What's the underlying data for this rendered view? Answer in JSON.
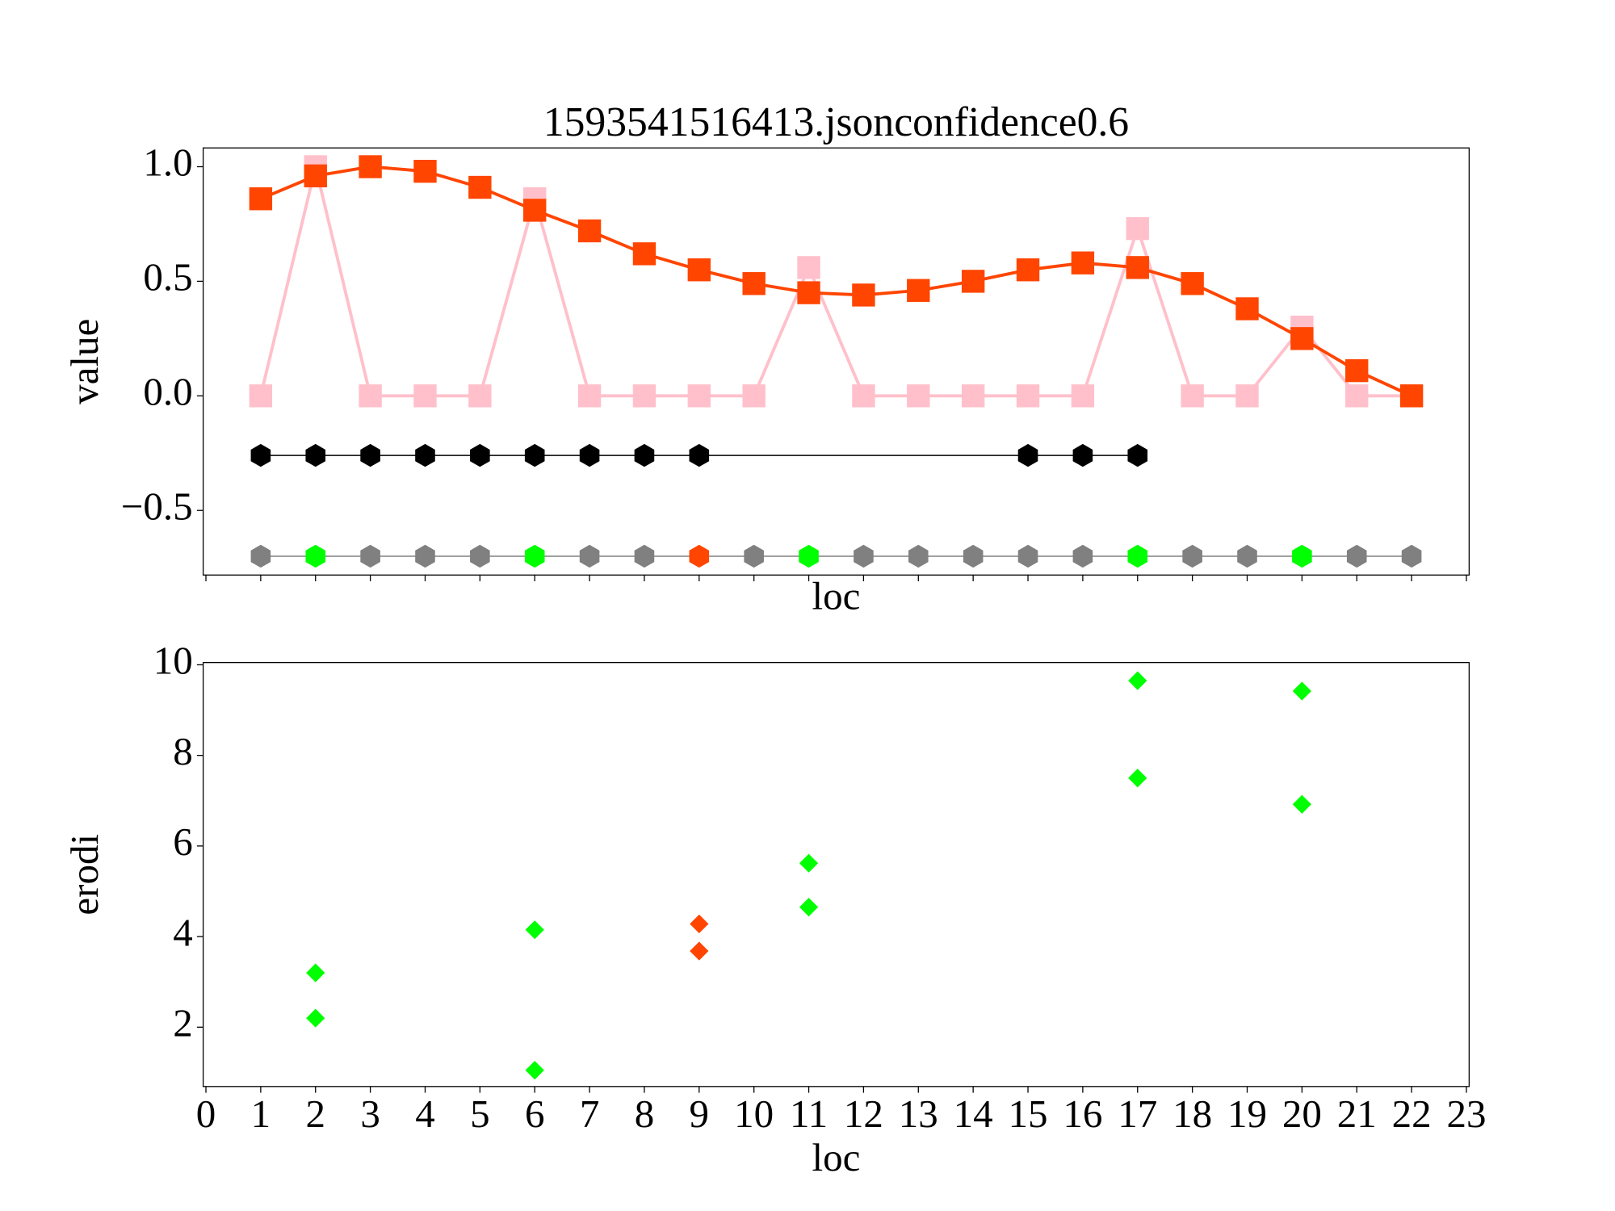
{
  "chart_data": [
    {
      "type": "line",
      "title": "1593541516413.jsonconfidence0.6",
      "xlabel": "loc",
      "ylabel": "value",
      "xlim": [
        -0.05,
        23.05
      ],
      "ylim": [
        -0.782,
        1.082
      ],
      "yticks": [
        {
          "value": -0.5,
          "label": "−0.5"
        },
        {
          "value": 0,
          "label": "0.0"
        },
        {
          "value": 0.5,
          "label": "0.5"
        },
        {
          "value": 1,
          "label": "1.0"
        }
      ],
      "series": [
        {
          "color": "#ffc0cb",
          "marker": "square",
          "x": [
            1,
            2,
            3,
            4,
            5,
            6,
            7,
            8,
            9,
            10,
            11,
            12,
            13,
            14,
            15,
            16,
            17,
            18,
            19,
            20,
            21,
            22
          ],
          "values": [
            0,
            1.0,
            0,
            0,
            0,
            0.86,
            0,
            0,
            0,
            0,
            0.56,
            0,
            0,
            0,
            0,
            0,
            0.73,
            0,
            0,
            0.3,
            0,
            0
          ]
        },
        {
          "color": "#ff4500",
          "marker": "square",
          "x": [
            1,
            2,
            3,
            4,
            5,
            6,
            7,
            8,
            9,
            10,
            11,
            12,
            13,
            14,
            15,
            16,
            17,
            18,
            19,
            20,
            21,
            22
          ],
          "values": [
            0.86,
            0.96,
            1.0,
            0.98,
            0.91,
            0.81,
            0.72,
            0.62,
            0.55,
            0.49,
            0.45,
            0.44,
            0.46,
            0.5,
            0.55,
            0.58,
            0.56,
            0.49,
            0.38,
            0.25,
            0.11,
            0.0
          ]
        },
        {
          "color": "#000000",
          "marker": "hexagon",
          "x": [
            1,
            2,
            3,
            4,
            5,
            6,
            7,
            8,
            9,
            15,
            16,
            17
          ],
          "values": [
            -0.26,
            -0.26,
            -0.26,
            -0.26,
            -0.26,
            -0.26,
            -0.26,
            -0.26,
            -0.26,
            -0.26,
            -0.26,
            -0.26
          ]
        },
        {
          "color": "#808080",
          "marker": "hexagon",
          "x": [
            1,
            2,
            3,
            4,
            5,
            6,
            7,
            8,
            9,
            10,
            11,
            12,
            13,
            14,
            15,
            16,
            17,
            18,
            19,
            20,
            21,
            22
          ],
          "values": [
            -0.7,
            -0.7,
            -0.7,
            -0.7,
            -0.7,
            -0.7,
            -0.7,
            -0.7,
            -0.7,
            -0.7,
            -0.7,
            -0.7,
            -0.7,
            -0.7,
            -0.7,
            -0.7,
            -0.7,
            -0.7,
            -0.7,
            -0.7,
            -0.7,
            -0.7
          ],
          "colors": [
            "#808080",
            "#00ff00",
            "#808080",
            "#808080",
            "#808080",
            "#00ff00",
            "#808080",
            "#808080",
            "#ff4500",
            "#808080",
            "#00ff00",
            "#808080",
            "#808080",
            "#808080",
            "#808080",
            "#808080",
            "#00ff00",
            "#808080",
            "#808080",
            "#00ff00",
            "#808080",
            "#808080"
          ]
        }
      ]
    },
    {
      "type": "scatter",
      "xlabel": "loc",
      "ylabel": "erodi",
      "xlim": [
        -0.05,
        23.05
      ],
      "ylim": [
        0.69,
        10.05
      ],
      "xticks": [
        0,
        1,
        2,
        3,
        4,
        5,
        6,
        7,
        8,
        9,
        10,
        11,
        12,
        13,
        14,
        15,
        16,
        17,
        18,
        19,
        20,
        21,
        22,
        23
      ],
      "yticks": [
        2,
        4,
        6,
        8,
        10
      ],
      "series": [
        {
          "marker": "diamond",
          "x": [
            2,
            2,
            6,
            6,
            9,
            9,
            11,
            11,
            17,
            17,
            20,
            20
          ],
          "values": [
            3.2,
            2.2,
            4.15,
            1.05,
            4.28,
            3.68,
            5.62,
            4.65,
            9.65,
            7.5,
            9.42,
            6.92
          ],
          "colors": [
            "#00ff00",
            "#00ff00",
            "#00ff00",
            "#00ff00",
            "#ff4500",
            "#ff4500",
            "#00ff00",
            "#00ff00",
            "#00ff00",
            "#00ff00",
            "#00ff00",
            "#00ff00"
          ]
        }
      ]
    }
  ]
}
